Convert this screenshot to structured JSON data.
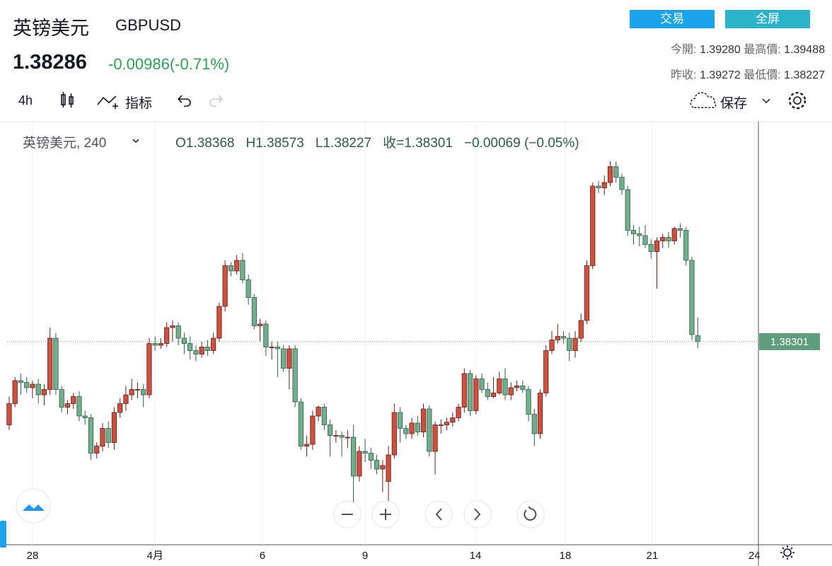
{
  "header": {
    "title": "英镑美元",
    "symbol": "GBPUSD",
    "price": "1.38286",
    "change": "-0.00986(-0.71%)",
    "buttons": [
      "交易",
      "全屏"
    ],
    "stats": [
      [
        "今開:",
        "1.39280",
        "最高價:",
        "1.39488"
      ],
      [
        "昨收:",
        "1.39272",
        "最低價:",
        "1.38227"
      ]
    ]
  },
  "toolbar": {
    "interval": "4h",
    "indicators": "指标",
    "save": "保存"
  },
  "chart_data": {
    "type": "candlestick",
    "legend": {
      "name": "英镑美元, 240",
      "items": [
        "O1.38368",
        "H1.38573",
        "L1.38227",
        "收=1.38301",
        "−0.00069 (−0.05%)"
      ]
    },
    "up_color": "#d0503f",
    "down_color": "#72ae8e",
    "xlim": [
      -0.36,
      128.4
    ],
    "ylim": [
      1.36084,
      1.4078
    ],
    "xticks": [
      {
        "value": 4.0,
        "label": "28"
      },
      {
        "value": 25.0,
        "label": "4月"
      },
      {
        "value": 43.4,
        "label": "6"
      },
      {
        "value": 61.0,
        "label": "9"
      },
      {
        "value": 79.9,
        "label": "14"
      },
      {
        "value": 95.3,
        "label": "18"
      },
      {
        "value": 110.2,
        "label": "21"
      },
      {
        "value": 127.7,
        "label": "24"
      }
    ],
    "open": [
      1.3736,
      1.376,
      1.3786,
      1.3784,
      1.3778,
      1.3782,
      1.377,
      1.3776,
      1.3834,
      1.3776,
      1.3756,
      1.376,
      1.3768,
      1.3746,
      1.3744,
      1.3704,
      1.3712,
      1.3732,
      1.3716,
      1.375,
      1.376,
      1.377,
      1.3776,
      1.3776,
      1.377,
      1.3828,
      1.3826,
      1.3828,
      1.3846,
      1.3848,
      1.3834,
      1.3828,
      1.382,
      1.3816,
      1.3824,
      1.382,
      1.3834,
      1.387,
      1.3916,
      1.391,
      1.3922,
      1.39,
      1.388,
      1.3848,
      1.385,
      1.3824,
      1.3824,
      1.3822,
      1.38,
      1.3822,
      1.3762,
      1.3712,
      1.3714,
      1.3746,
      1.3756,
      1.3736,
      1.3724,
      1.3724,
      1.3722,
      1.3722,
      1.3678,
      1.3706,
      1.3704,
      1.3696,
      1.3686,
      1.3672,
      1.3702,
      1.375,
      1.3732,
      1.3726,
      1.3738,
      1.3728,
      1.3754,
      1.3706,
      1.3736,
      1.3736,
      1.3739,
      1.3744,
      1.3756,
      1.3794,
      1.3752,
      1.3788,
      1.3776,
      1.3768,
      1.3772,
      1.3788,
      1.377,
      1.3778,
      1.378,
      1.3776,
      1.3748,
      1.3726,
      1.3772,
      1.382,
      1.3832,
      1.3836,
      1.3834,
      1.382,
      1.3834,
      1.3854,
      1.3916,
      1.4006,
      1.4004,
      1.401,
      1.4028,
      1.4016,
      1.4002,
      1.3956,
      1.3952,
      1.395,
      1.394,
      1.3932,
      1.3944,
      1.3948,
      1.3944,
      1.3958,
      1.3956,
      1.3922,
      1.38368
    ],
    "high": [
      1.3768,
      1.379,
      1.3794,
      1.379,
      1.3786,
      1.3788,
      1.3782,
      1.3846,
      1.384,
      1.378,
      1.3764,
      1.3772,
      1.3774,
      1.3752,
      1.3748,
      1.3716,
      1.3738,
      1.374,
      1.3756,
      1.3766,
      1.378,
      1.3788,
      1.3784,
      1.3782,
      1.3834,
      1.3836,
      1.3834,
      1.3852,
      1.3854,
      1.3852,
      1.384,
      1.3836,
      1.3826,
      1.383,
      1.3832,
      1.384,
      1.3874,
      1.3922,
      1.392,
      1.3928,
      1.393,
      1.3906,
      1.3884,
      1.3856,
      1.3854,
      1.383,
      1.383,
      1.3826,
      1.3826,
      1.3826,
      1.3766,
      1.3724,
      1.3752,
      1.3758,
      1.376,
      1.3742,
      1.373,
      1.3728,
      1.373,
      1.3736,
      1.3712,
      1.372,
      1.371,
      1.3702,
      1.3696,
      1.3712,
      1.376,
      1.3756,
      1.3736,
      1.3744,
      1.3746,
      1.376,
      1.3758,
      1.374,
      1.3742,
      1.3744,
      1.375,
      1.376,
      1.38,
      1.3798,
      1.3792,
      1.3794,
      1.3784,
      1.379,
      1.3796,
      1.38,
      1.3784,
      1.3786,
      1.3786,
      1.378,
      1.3754,
      1.3776,
      1.3826,
      1.3842,
      1.385,
      1.3842,
      1.384,
      1.3842,
      1.3862,
      1.3922,
      1.401,
      1.4012,
      1.4018,
      1.4034,
      1.4034,
      1.402,
      1.4006,
      1.3962,
      1.396,
      1.3962,
      1.3946,
      1.3948,
      1.3952,
      1.3954,
      1.396,
      1.3964,
      1.396,
      1.3926,
      1.38573
    ],
    "low": [
      1.373,
      1.3756,
      1.377,
      1.3772,
      1.3766,
      1.376,
      1.3758,
      1.377,
      1.377,
      1.375,
      1.3748,
      1.3754,
      1.374,
      1.3736,
      1.3696,
      1.3698,
      1.3706,
      1.371,
      1.3708,
      1.3744,
      1.3752,
      1.3764,
      1.3766,
      1.3756,
      1.3766,
      1.382,
      1.3822,
      1.3824,
      1.383,
      1.3826,
      1.3816,
      1.381,
      1.3808,
      1.3812,
      1.3814,
      1.3816,
      1.383,
      1.3864,
      1.3904,
      1.3906,
      1.3896,
      1.3872,
      1.3844,
      1.383,
      1.3814,
      1.381,
      1.379,
      1.3796,
      1.3776,
      1.3756,
      1.3708,
      1.37,
      1.3708,
      1.374,
      1.373,
      1.37,
      1.3716,
      1.37,
      1.371,
      1.3648,
      1.3672,
      1.3694,
      1.3686,
      1.368,
      1.366,
      1.3648,
      1.3698,
      1.3716,
      1.372,
      1.372,
      1.3724,
      1.3722,
      1.37,
      1.368,
      1.3726,
      1.373,
      1.3734,
      1.374,
      1.375,
      1.3746,
      1.3748,
      1.3772,
      1.3764,
      1.3766,
      1.377,
      1.3764,
      1.3764,
      1.3774,
      1.3772,
      1.374,
      1.3712,
      1.372,
      1.3768,
      1.3816,
      1.3828,
      1.3828,
      1.3808,
      1.3812,
      1.383,
      1.385,
      1.3912,
      1.3998,
      1.3996,
      1.4006,
      1.401,
      1.3996,
      1.395,
      1.394,
      1.3938,
      1.3936,
      1.3924,
      1.389,
      1.3936,
      1.3936,
      1.394,
      1.3948,
      1.3916,
      1.3832,
      1.38227
    ],
    "close": [
      1.376,
      1.3786,
      1.3784,
      1.3778,
      1.3782,
      1.377,
      1.3776,
      1.3834,
      1.3776,
      1.3756,
      1.376,
      1.3768,
      1.3746,
      1.3744,
      1.3704,
      1.3712,
      1.3732,
      1.3716,
      1.375,
      1.376,
      1.377,
      1.3776,
      1.3776,
      1.377,
      1.3828,
      1.3826,
      1.3828,
      1.3846,
      1.3848,
      1.3834,
      1.3828,
      1.382,
      1.3816,
      1.3824,
      1.382,
      1.3834,
      1.387,
      1.3916,
      1.391,
      1.3922,
      1.39,
      1.388,
      1.3848,
      1.385,
      1.3824,
      1.3824,
      1.3822,
      1.38,
      1.3822,
      1.3762,
      1.3712,
      1.3714,
      1.3746,
      1.3756,
      1.3736,
      1.3724,
      1.3724,
      1.3722,
      1.3722,
      1.3678,
      1.3706,
      1.3704,
      1.3696,
      1.3686,
      1.369,
      1.3702,
      1.375,
      1.3732,
      1.3726,
      1.3738,
      1.3728,
      1.3754,
      1.3706,
      1.3736,
      1.3736,
      1.3739,
      1.3744,
      1.3756,
      1.3794,
      1.3752,
      1.3788,
      1.3776,
      1.3768,
      1.3772,
      1.3788,
      1.377,
      1.3778,
      1.378,
      1.3776,
      1.3748,
      1.3726,
      1.3772,
      1.382,
      1.3832,
      1.3836,
      1.3834,
      1.382,
      1.3834,
      1.3854,
      1.3916,
      1.4006,
      1.4004,
      1.401,
      1.4028,
      1.4016,
      1.4002,
      1.3956,
      1.3952,
      1.395,
      1.394,
      1.3932,
      1.3944,
      1.3948,
      1.3944,
      1.3958,
      1.3956,
      1.3922,
      1.3838,
      1.38301
    ]
  }
}
